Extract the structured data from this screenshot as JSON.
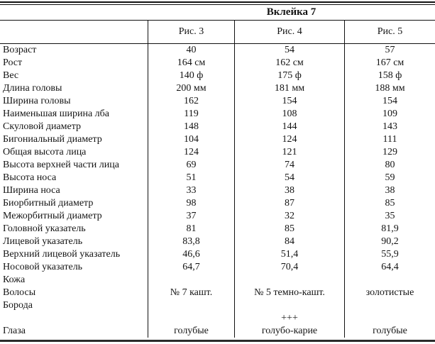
{
  "page": {
    "background_color": "#ffffff",
    "text_color": "#141414",
    "line_color": "#111111"
  },
  "table": {
    "title": "Вклейка 7",
    "columns": [
      "Рис. 3",
      "Рис. 4",
      "Рис. 5"
    ],
    "rows": [
      {
        "label": "Возраст",
        "values": [
          "40",
          "54",
          "57"
        ]
      },
      {
        "label": "Рост",
        "values": [
          "164 см",
          "162 см",
          "167 см"
        ]
      },
      {
        "label": "Вес",
        "values": [
          "140 ф",
          "175 ф",
          "158 ф"
        ]
      },
      {
        "label": "Длина головы",
        "values": [
          "200 мм",
          "181 мм",
          "188 мм"
        ]
      },
      {
        "label": "Ширина головы",
        "values": [
          "162",
          "154",
          "154"
        ]
      },
      {
        "label": "Наименьшая ширина лба",
        "values": [
          "119",
          "108",
          "109"
        ]
      },
      {
        "label": "Скуловой диаметр",
        "values": [
          "148",
          "144",
          "143"
        ]
      },
      {
        "label": "Бигониальный диаметр",
        "values": [
          "104",
          "124",
          "111"
        ]
      },
      {
        "label": "Общая высота лица",
        "values": [
          "124",
          "121",
          "129"
        ]
      },
      {
        "label": "Высота верхней части лица",
        "values": [
          "69",
          "74",
          "80"
        ]
      },
      {
        "label": "Высота носа",
        "values": [
          "51",
          "54",
          "59"
        ]
      },
      {
        "label": "Ширина носа",
        "values": [
          "33",
          "38",
          "38"
        ]
      },
      {
        "label": "Биорбитный диаметр",
        "values": [
          "98",
          "87",
          "85"
        ]
      },
      {
        "label": "Межорбитный диаметр",
        "values": [
          "37",
          "32",
          "35"
        ]
      },
      {
        "label": "Головной указатель",
        "values": [
          "81",
          "85",
          "81,9"
        ]
      },
      {
        "label": "Лицевой указатель",
        "values": [
          "83,8",
          "84",
          "90,2"
        ]
      },
      {
        "label": "Верхний лицевой указатель",
        "values": [
          "46,6",
          "51,4",
          "55,9"
        ]
      },
      {
        "label": "Носовой указатель",
        "values": [
          "64,7",
          "70,4",
          "64,4"
        ]
      },
      {
        "label": "Кожа",
        "values": [
          "",
          "",
          ""
        ]
      },
      {
        "label": "Волосы",
        "values": [
          "№ 7 кашт.",
          "№ 5 темно-кашт.",
          "золотистые"
        ]
      },
      {
        "label": "Борода",
        "values": [
          "",
          "",
          ""
        ]
      },
      {
        "label": "",
        "values": [
          "",
          "+++",
          ""
        ]
      },
      {
        "label": "Глаза",
        "values": [
          "голубые",
          "голубо-карие",
          "голубые"
        ]
      }
    ]
  }
}
